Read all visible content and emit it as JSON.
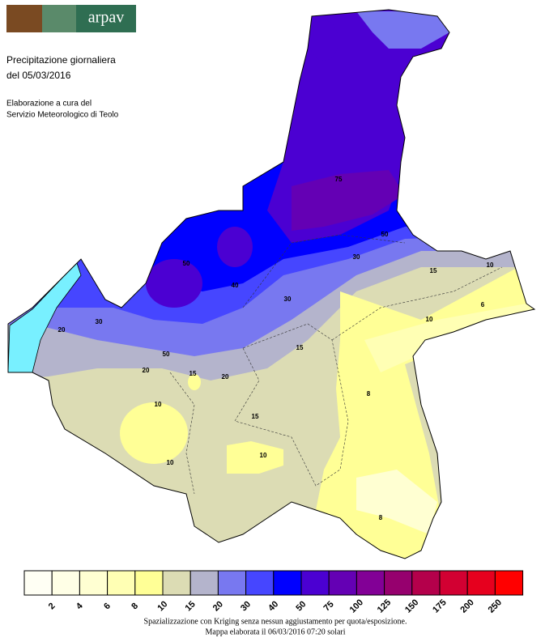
{
  "header": {
    "logo_text": "arpav",
    "title": "Precipitazione giornaliera",
    "date": "del 05/03/2016",
    "credit_line1": "Elaborazione a cura del",
    "credit_line2": "Servizio Meteorologico di Teolo"
  },
  "legend": {
    "colors": [
      "#fffff4",
      "#ffffe6",
      "#ffffd2",
      "#ffffb4",
      "#ffff96",
      "#dcdcb4",
      "#b4b4cc",
      "#7878f0",
      "#4646ff",
      "#0000ff",
      "#4b00d2",
      "#6400b4",
      "#820096",
      "#96006e",
      "#b4004b",
      "#d20032",
      "#e6001e",
      "#ff0000"
    ],
    "ticks": [
      2,
      4,
      6,
      8,
      10,
      15,
      20,
      30,
      40,
      50,
      75,
      100,
      125,
      150,
      175,
      200,
      250
    ]
  },
  "contour_labels": [
    10,
    10,
    10,
    8,
    8,
    6,
    10,
    15,
    15,
    15,
    20,
    20,
    20,
    30,
    30,
    40,
    50,
    50,
    75,
    50,
    30,
    15,
    10
  ],
  "footer": {
    "line1": "Spazializzazione con Kriging senza nessun aggiustamento per quota/esposizione.",
    "line2": "Mappa elaborata il 06/03/2016 07:20 solari"
  }
}
